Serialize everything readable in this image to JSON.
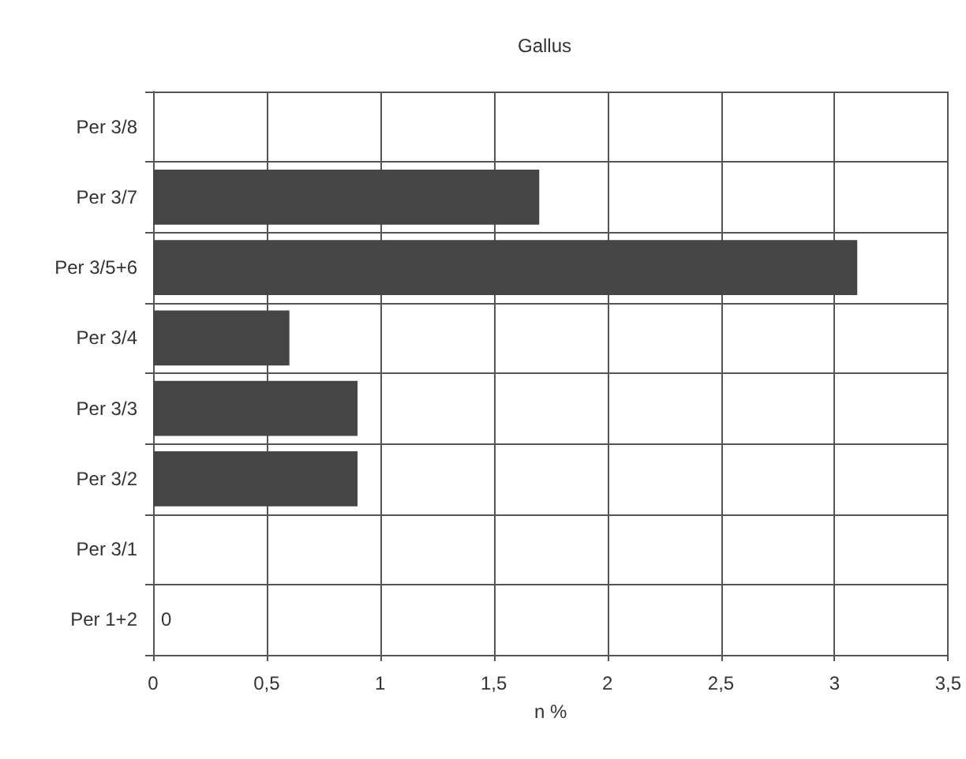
{
  "chart_data": {
    "type": "bar",
    "orientation": "horizontal",
    "title": "Gallus",
    "xlabel": "n %",
    "categories": [
      "Per 3/8",
      "Per 3/7",
      "Per 3/5+6",
      "Per 3/4",
      "Per 3/3",
      "Per 3/2",
      "Per 3/1",
      "Per 1+2"
    ],
    "values": [
      0,
      1.7,
      3.1,
      0.6,
      0.9,
      0.9,
      0,
      0
    ],
    "value_labels": [
      null,
      null,
      null,
      null,
      null,
      null,
      null,
      "0"
    ],
    "color": "#454545",
    "xlim": [
      0,
      3.5
    ],
    "xticks": [
      0,
      {
        "value": 0.5,
        "label": "0,5"
      },
      1,
      {
        "value": 1.5,
        "label": "1,5"
      },
      2,
      {
        "value": 2.5,
        "label": "2,5"
      },
      3,
      {
        "value": 3.5,
        "label": "3,5"
      }
    ],
    "grid": true
  }
}
